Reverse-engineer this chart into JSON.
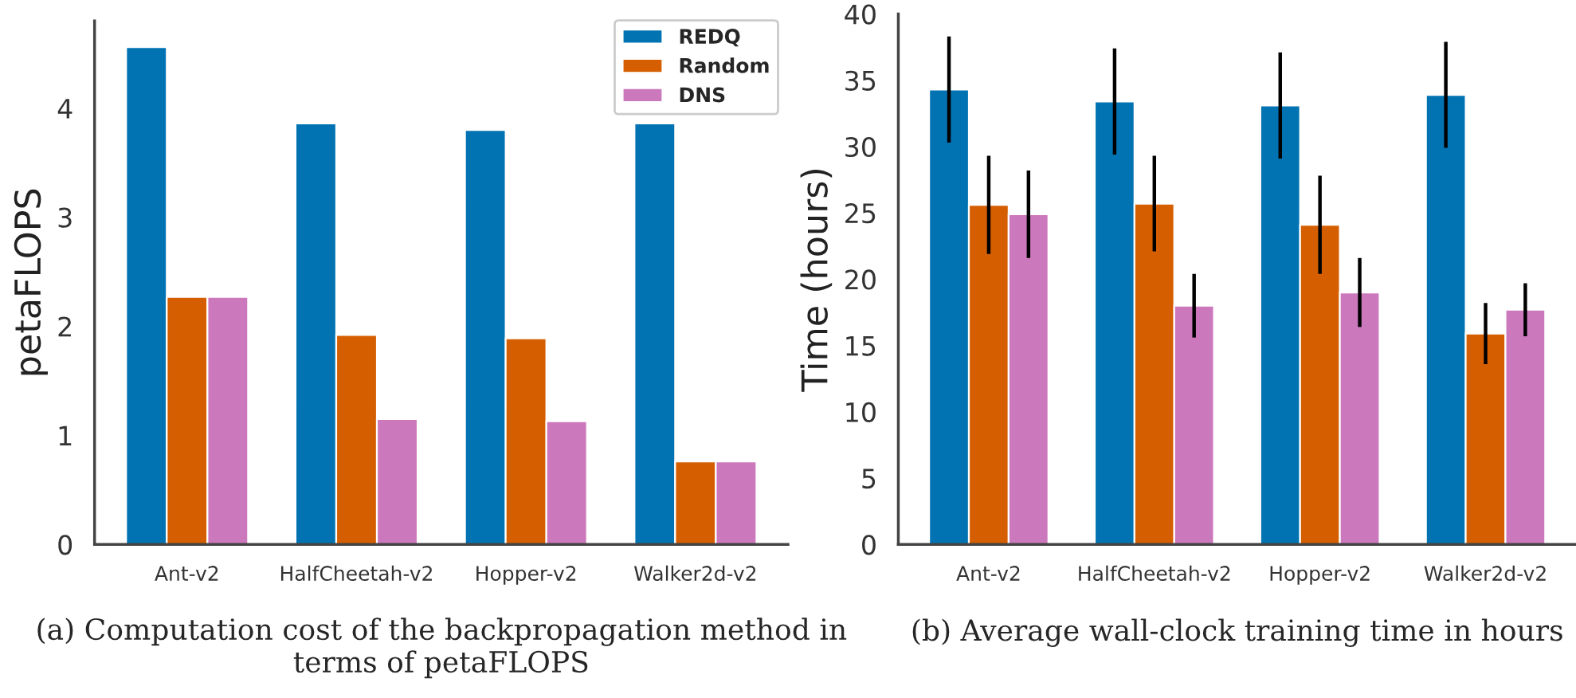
{
  "chart_data": [
    {
      "type": "bar",
      "ylabel": "petaFLOPS",
      "categories": [
        "Ant-v2",
        "HalfCheetah-v2",
        "Hopper-v2",
        "Walker2d-v2"
      ],
      "series": [
        {
          "name": "REDQ",
          "color": "#0173b2",
          "values": [
            4.56,
            3.86,
            3.8,
            3.86
          ]
        },
        {
          "name": "Random",
          "color": "#d55e00",
          "values": [
            2.27,
            1.92,
            1.89,
            0.76
          ]
        },
        {
          "name": "DNS",
          "color": "#cc78bc",
          "values": [
            2.27,
            1.15,
            1.13,
            0.76
          ]
        }
      ],
      "ylim": [
        0,
        4.8
      ],
      "yticks": [
        0,
        1,
        2,
        3,
        4
      ],
      "grid": false,
      "legend": "top right",
      "annotations": [
        "(a) Computation cost of the backpropagation method in terms of petaFLOPS"
      ]
    },
    {
      "type": "bar",
      "ylabel": "Time (hours)",
      "categories": [
        "Ant-v2",
        "HalfCheetah-v2",
        "Hopper-v2",
        "Walker2d-v2"
      ],
      "series": [
        {
          "color": "#0173b2",
          "values": [
            34.3,
            33.4,
            33.1,
            33.9
          ],
          "errors": [
            4.0,
            4.0,
            4.0,
            4.0
          ]
        },
        {
          "color": "#d55e00",
          "values": [
            25.6,
            25.7,
            24.1,
            15.9
          ],
          "errors": [
            3.7,
            3.6,
            3.7,
            2.3
          ]
        },
        {
          "color": "#cc78bc",
          "values": [
            24.9,
            18.0,
            19.0,
            17.7
          ],
          "errors": [
            3.3,
            2.4,
            2.6,
            2.0
          ]
        }
      ],
      "ylim": [
        0,
        40
      ],
      "yticks": [
        0,
        5,
        10,
        15,
        20,
        25,
        30,
        35,
        40
      ],
      "grid": false,
      "legend": false,
      "annotations": [
        "(b) Average wall-clock training time in hours"
      ]
    }
  ]
}
